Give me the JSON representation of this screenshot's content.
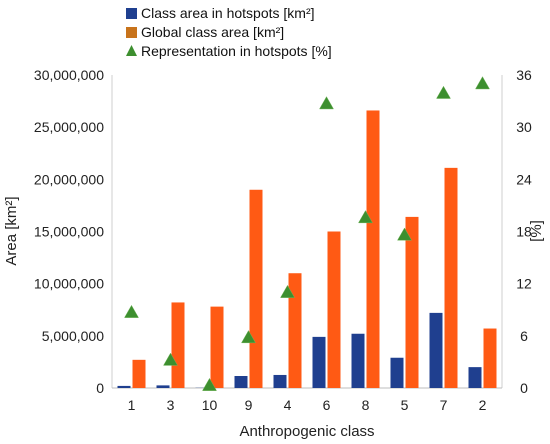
{
  "chart_data": {
    "type": "bar",
    "xlabel": "Anthropogenic class",
    "ylabel": "Area [km²]",
    "y2label": "[%]",
    "categories": [
      "1",
      "3",
      "10",
      "9",
      "4",
      "6",
      "8",
      "5",
      "7",
      "2"
    ],
    "ylim": [
      0,
      30000000
    ],
    "yticks": [
      0,
      5000000,
      10000000,
      15000000,
      20000000,
      25000000,
      30000000
    ],
    "ytick_labels": [
      "0",
      "5,000,000",
      "10,000,000",
      "15,000,000",
      "20,000,000",
      "25,000,000",
      "30,000,000"
    ],
    "y2lim": [
      0,
      36
    ],
    "y2ticks": [
      0,
      6,
      12,
      18,
      24,
      30,
      36
    ],
    "legend_position": "top",
    "grid": false,
    "series": [
      {
        "name": "Class area in hotspots [km²]",
        "kind": "bar",
        "axis": "left",
        "color": "#1f3f8f",
        "values": [
          200000,
          250000,
          20000,
          1150000,
          1250000,
          4900000,
          5200000,
          2900000,
          7200000,
          2000000
        ]
      },
      {
        "name": "Global class area [km²]",
        "kind": "bar",
        "axis": "left",
        "color": "#ff5a14",
        "values": [
          2700000,
          8200000,
          7800000,
          19000000,
          11000000,
          15000000,
          26600000,
          16400000,
          21100000,
          5700000
        ]
      },
      {
        "name": "Representation in hotspots [%]",
        "kind": "scatter",
        "axis": "right",
        "color": "#3d8f2f",
        "values": [
          8.7,
          3.2,
          0.3,
          5.8,
          11.0,
          32.7,
          19.6,
          17.6,
          33.9,
          35.0
        ]
      }
    ]
  }
}
